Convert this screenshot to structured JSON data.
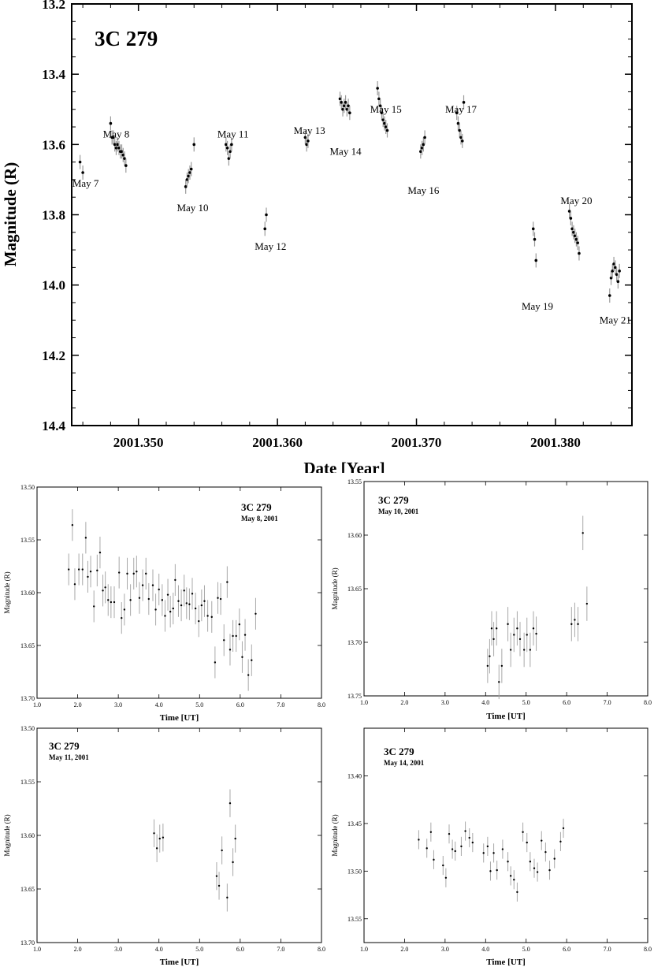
{
  "chart_data": [
    {
      "type": "scatter",
      "title": "3C 279",
      "xlabel": "Date [Year]",
      "ylabel": "Magnitude (R)",
      "xlim": [
        2001.3452,
        2001.3855
      ],
      "ylim": [
        13.2,
        14.4
      ],
      "y_inverted": true,
      "grid": false,
      "x_ticks": [
        "2001.350",
        "2001.360",
        "2001.370",
        "2001.380"
      ],
      "x_tick_values": [
        2001.35,
        2001.36,
        2001.37,
        2001.38
      ],
      "y_ticks": [
        "13.2",
        "13.4",
        "13.6",
        "13.8",
        "14.0",
        "14.2",
        "14.4"
      ],
      "y_tick_values": [
        13.2,
        13.4,
        13.6,
        13.8,
        14.0,
        14.2,
        14.4
      ],
      "annotations": [
        {
          "text": "May 7",
          "x": 2001.3462,
          "y": 13.72
        },
        {
          "text": "May 8",
          "x": 2001.3484,
          "y": 13.58
        },
        {
          "text": "May 10",
          "x": 2001.3539,
          "y": 13.79
        },
        {
          "text": "May 11",
          "x": 2001.3568,
          "y": 13.58
        },
        {
          "text": "May 12",
          "x": 2001.3595,
          "y": 13.9
        },
        {
          "text": "May 13",
          "x": 2001.3623,
          "y": 13.57
        },
        {
          "text": "May 14",
          "x": 2001.3649,
          "y": 13.63
        },
        {
          "text": "May 15",
          "x": 2001.3678,
          "y": 13.51
        },
        {
          "text": "May 16",
          "x": 2001.3705,
          "y": 13.74
        },
        {
          "text": "May 17",
          "x": 2001.3732,
          "y": 13.51
        },
        {
          "text": "May 19",
          "x": 2001.3787,
          "y": 14.07
        },
        {
          "text": "May 20",
          "x": 2001.3815,
          "y": 13.77
        },
        {
          "text": "May 21",
          "x": 2001.3843,
          "y": 14.11
        }
      ],
      "clusters": [
        {
          "x": [
            2001.3458,
            2001.346
          ],
          "y": [
            13.65,
            13.68
          ]
        },
        {
          "x": [
            2001.348,
            2001.3481,
            2001.3482,
            2001.3483,
            2001.3484,
            2001.3485,
            2001.3486,
            2001.3487,
            2001.3488,
            2001.3489,
            2001.349,
            2001.3491
          ],
          "y": [
            13.54,
            13.58,
            13.58,
            13.6,
            13.61,
            13.6,
            13.61,
            13.62,
            13.62,
            13.63,
            13.64,
            13.66
          ]
        },
        {
          "x": [
            2001.3534,
            2001.3535,
            2001.3536,
            2001.3537,
            2001.3538,
            2001.354
          ],
          "y": [
            13.72,
            13.7,
            13.69,
            13.68,
            13.67,
            13.6
          ]
        },
        {
          "x": [
            2001.3563,
            2001.3564,
            2001.3565,
            2001.3566,
            2001.3567
          ],
          "y": [
            13.6,
            13.61,
            13.64,
            13.62,
            13.6
          ]
        },
        {
          "x": [
            2001.3591,
            2001.3592
          ],
          "y": [
            13.84,
            13.8
          ]
        },
        {
          "x": [
            2001.362,
            2001.3621,
            2001.3622
          ],
          "y": [
            13.58,
            13.6,
            13.59
          ]
        },
        {
          "x": [
            2001.3645,
            2001.3646,
            2001.3647,
            2001.3648,
            2001.3649,
            2001.365,
            2001.3651,
            2001.3652
          ],
          "y": [
            13.47,
            13.48,
            13.5,
            13.49,
            13.48,
            13.5,
            13.49,
            13.51
          ]
        },
        {
          "x": [
            2001.3672,
            2001.3673,
            2001.3674,
            2001.3675,
            2001.3676,
            2001.3677,
            2001.3678,
            2001.3679
          ],
          "y": [
            13.44,
            13.47,
            13.49,
            13.51,
            13.53,
            13.54,
            13.55,
            13.56
          ]
        },
        {
          "x": [
            2001.3703,
            2001.3704,
            2001.3705,
            2001.3706
          ],
          "y": [
            13.62,
            13.61,
            13.6,
            13.58
          ]
        },
        {
          "x": [
            2001.3729,
            2001.373,
            2001.3731,
            2001.3732,
            2001.3733,
            2001.3734
          ],
          "y": [
            13.51,
            13.54,
            13.56,
            13.58,
            13.59,
            13.48
          ]
        },
        {
          "x": [
            2001.3784,
            2001.3785,
            2001.3786
          ],
          "y": [
            13.84,
            13.87,
            13.93
          ]
        },
        {
          "x": [
            2001.381,
            2001.3811,
            2001.3812,
            2001.3813,
            2001.3814,
            2001.3815,
            2001.3816,
            2001.3817
          ],
          "y": [
            13.79,
            13.81,
            13.84,
            13.85,
            13.86,
            13.87,
            13.88,
            13.91
          ]
        },
        {
          "x": [
            2001.3839,
            2001.384,
            2001.3841,
            2001.3842,
            2001.3843,
            2001.3844,
            2001.3845,
            2001.3846
          ],
          "y": [
            14.03,
            13.98,
            13.96,
            13.94,
            13.95,
            13.97,
            13.99,
            13.96
          ]
        }
      ]
    },
    {
      "type": "scatter",
      "title": "3C 279",
      "subtitle": "May 8, 2001",
      "xlabel": "Time [UT]",
      "ylabel": "Magnitude (R)",
      "xlim": [
        1.0,
        8.0
      ],
      "ylim": [
        13.5,
        13.7
      ],
      "y_inverted": true,
      "x_ticks": [
        "1.0",
        "2.0",
        "3.0",
        "4.0",
        "5.0",
        "6.0",
        "7.0",
        "8.0"
      ],
      "y_ticks": [
        "13.50",
        "13.55",
        "13.60",
        "13.65",
        "13.70"
      ],
      "x": [
        1.78,
        1.87,
        1.93,
        2.03,
        2.12,
        2.2,
        2.25,
        2.32,
        2.4,
        2.48,
        2.55,
        2.62,
        2.68,
        2.75,
        2.82,
        2.9,
        3.02,
        3.08,
        3.15,
        3.22,
        3.3,
        3.38,
        3.45,
        3.52,
        3.6,
        3.68,
        3.75,
        3.85,
        3.92,
        4.0,
        4.08,
        4.15,
        4.22,
        4.28,
        4.35,
        4.4,
        4.48,
        4.55,
        4.62,
        4.68,
        4.75,
        4.82,
        4.9,
        4.98,
        5.05,
        5.12,
        5.2,
        5.3,
        5.38,
        5.45,
        5.52,
        5.6,
        5.68,
        5.75,
        5.82,
        5.9,
        5.98,
        6.05,
        6.12,
        6.2,
        6.28,
        6.38
      ],
      "y": [
        13.578,
        13.536,
        13.592,
        13.578,
        13.578,
        13.548,
        13.585,
        13.58,
        13.613,
        13.579,
        13.562,
        13.598,
        13.595,
        13.607,
        13.609,
        13.609,
        13.581,
        13.624,
        13.616,
        13.582,
        13.607,
        13.582,
        13.58,
        13.605,
        13.593,
        13.582,
        13.606,
        13.593,
        13.616,
        13.597,
        13.607,
        13.622,
        13.602,
        13.618,
        13.615,
        13.588,
        13.608,
        13.612,
        13.598,
        13.61,
        13.611,
        13.601,
        13.615,
        13.627,
        13.612,
        13.608,
        13.622,
        13.623,
        13.666,
        13.605,
        13.606,
        13.645,
        13.59,
        13.654,
        13.641,
        13.641,
        13.63,
        13.661,
        13.64,
        13.678,
        13.664,
        13.62
      ],
      "yerr": 0.015
    },
    {
      "type": "scatter",
      "title": "3C 279",
      "subtitle": "May 10, 2001",
      "xlabel": "Time [UT]",
      "ylabel": "Magnitude (R)",
      "xlim": [
        1.0,
        8.0
      ],
      "ylim": [
        13.55,
        13.75
      ],
      "y_inverted": true,
      "x_ticks": [
        "1.0",
        "2.0",
        "3.0",
        "4.0",
        "5.0",
        "6.0",
        "7.0",
        "8.0"
      ],
      "y_ticks": [
        "13.55",
        "13.60",
        "13.65",
        "13.70",
        "13.75"
      ],
      "x": [
        4.05,
        4.1,
        4.15,
        4.2,
        4.27,
        4.33,
        4.4,
        4.55,
        4.62,
        4.7,
        4.78,
        4.85,
        4.95,
        5.02,
        5.1,
        5.18,
        5.25,
        6.12,
        6.2,
        6.28,
        6.4,
        6.5
      ],
      "y": [
        13.722,
        13.713,
        13.687,
        13.697,
        13.687,
        13.737,
        13.722,
        13.683,
        13.707,
        13.693,
        13.687,
        13.697,
        13.707,
        13.693,
        13.707,
        13.687,
        13.692,
        13.683,
        13.679,
        13.683,
        13.598,
        13.664
      ],
      "yerr": 0.016
    },
    {
      "type": "scatter",
      "title": "3C 279",
      "subtitle": "May 11, 2001",
      "xlabel": "Time [UT]",
      "ylabel": "Magnitude (R)",
      "xlim": [
        1.0,
        8.0
      ],
      "ylim": [
        13.5,
        13.7
      ],
      "y_inverted": true,
      "x_ticks": [
        "1.0",
        "2.0",
        "3.0",
        "4.0",
        "5.0",
        "6.0",
        "7.0",
        "8.0"
      ],
      "y_ticks": [
        "13.50",
        "13.55",
        "13.60",
        "13.65",
        "13.70"
      ],
      "x": [
        3.88,
        3.95,
        4.02,
        4.1,
        5.42,
        5.48,
        5.55,
        5.68,
        5.75,
        5.82,
        5.88
      ],
      "y": [
        13.598,
        13.612,
        13.603,
        13.602,
        13.638,
        13.647,
        13.614,
        13.658,
        13.57,
        13.625,
        13.603
      ],
      "yerr": 0.013
    },
    {
      "type": "scatter",
      "title": "3C 279",
      "subtitle": "May 14, 2001",
      "xlabel": "Time [UT]",
      "ylabel": "Magnitude (R)",
      "xlim": [
        1.0,
        8.0
      ],
      "ylim": [
        13.35,
        13.575
      ],
      "y_inverted": true,
      "x_ticks": [
        "1.0",
        "2.0",
        "3.0",
        "4.0",
        "5.0",
        "6.0",
        "7.0",
        "8.0"
      ],
      "y_ticks": [
        "13.40",
        "13.45",
        "13.50",
        "13.55"
      ],
      "x": [
        2.35,
        2.55,
        2.65,
        2.72,
        2.95,
        3.02,
        3.1,
        3.18,
        3.25,
        3.4,
        3.5,
        3.6,
        3.68,
        3.95,
        4.05,
        4.12,
        4.2,
        4.28,
        4.42,
        4.55,
        4.62,
        4.7,
        4.78,
        4.92,
        5.02,
        5.1,
        5.2,
        5.28,
        5.38,
        5.48,
        5.58,
        5.7,
        5.85,
        5.92
      ],
      "y": [
        13.467,
        13.476,
        13.459,
        13.488,
        13.494,
        13.507,
        13.461,
        13.477,
        13.479,
        13.474,
        13.458,
        13.465,
        13.47,
        13.481,
        13.474,
        13.5,
        13.481,
        13.499,
        13.477,
        13.49,
        13.505,
        13.509,
        13.522,
        13.459,
        13.47,
        13.49,
        13.497,
        13.501,
        13.468,
        13.48,
        13.499,
        13.487,
        13.469,
        13.455
      ],
      "yerr": 0.01
    }
  ]
}
